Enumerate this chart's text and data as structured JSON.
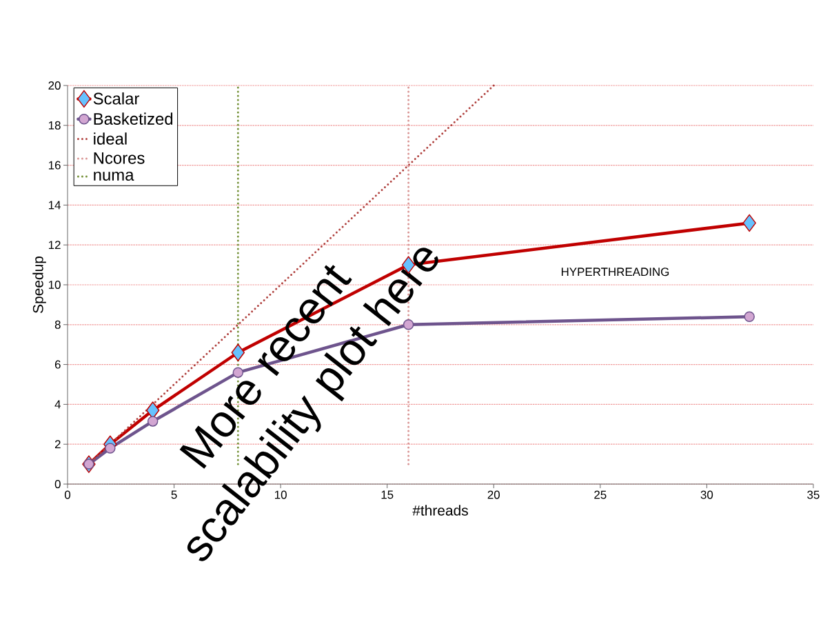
{
  "chart_data": {
    "type": "line",
    "xlabel": "#threads",
    "ylabel": "Speedup",
    "xlim": [
      0,
      35
    ],
    "xticks": [
      0,
      5,
      10,
      15,
      20,
      25,
      30,
      35
    ],
    "ylim": [
      0,
      20
    ],
    "yticks": [
      0,
      2,
      4,
      6,
      8,
      10,
      12,
      14,
      16,
      18,
      20
    ],
    "grid": "y",
    "legend": "top left",
    "series": [
      {
        "name": "Scalar",
        "color": "#c00000",
        "marker": "diamond",
        "line_style": "solid",
        "x": [
          1,
          2,
          4,
          8,
          16,
          32
        ],
        "values": [
          1.0,
          2.0,
          3.7,
          6.6,
          11.0,
          13.1
        ]
      },
      {
        "name": "Basketized",
        "color": "#6e548d",
        "marker": "circle",
        "line_style": "solid",
        "x": [
          1,
          2,
          4,
          8,
          16,
          32
        ],
        "values": [
          1.0,
          1.8,
          3.15,
          5.6,
          8.0,
          8.4
        ]
      },
      {
        "name": "ideal",
        "color": "#b0413e",
        "marker": "none",
        "line_style": "dotted",
        "x": [
          1,
          20
        ],
        "values": [
          1,
          20
        ]
      },
      {
        "name": "Ncores",
        "color": "#d99594",
        "marker": "none",
        "line_style": "dotted",
        "x": [
          16,
          16
        ],
        "values": [
          1,
          20
        ]
      },
      {
        "name": "numa",
        "color": "#77933c",
        "marker": "none",
        "line_style": "dotted",
        "x": [
          8,
          8
        ],
        "values": [
          1,
          20
        ]
      }
    ],
    "annotations": [
      "HYPERTHREADING",
      "More recent scalability plot here"
    ]
  }
}
